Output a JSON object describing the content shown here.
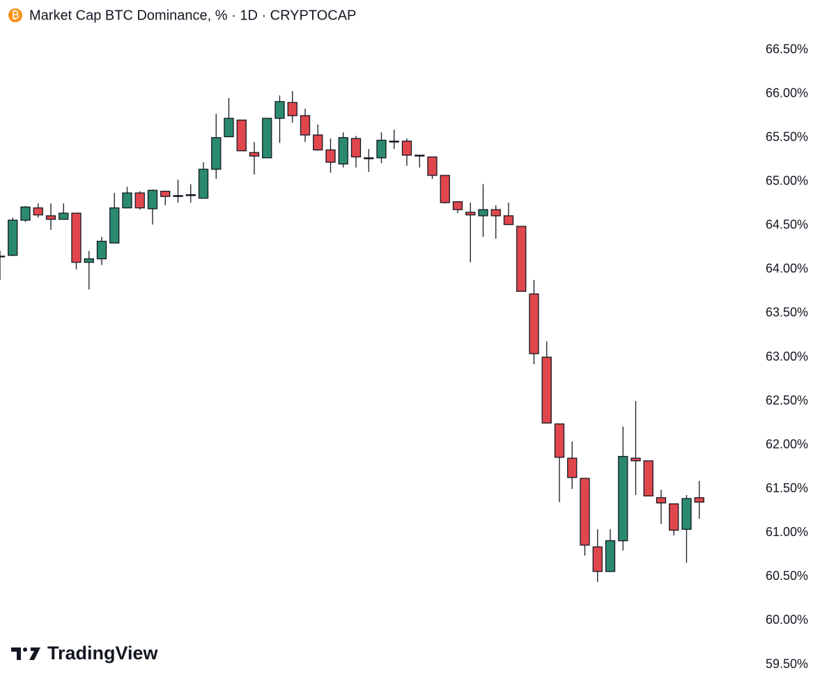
{
  "chart_data": {
    "type": "candlestick",
    "title": "Market Cap BTC Dominance, % · 1D · CRYPTOCAP",
    "watermark": "TradingView",
    "up_color": "#2b8a6e",
    "down_color": "#e0474c",
    "outline_color": "#131722",
    "ylim": [
      59.29,
      66.75
    ],
    "yticks": [
      {
        "value": 66.5,
        "label": "66.50%"
      },
      {
        "value": 66,
        "label": "66.00%"
      },
      {
        "value": 65.5,
        "label": "65.50%"
      },
      {
        "value": 65,
        "label": "65.00%"
      },
      {
        "value": 64.5,
        "label": "64.50%"
      },
      {
        "value": 64,
        "label": "64.00%"
      },
      {
        "value": 63.5,
        "label": "63.50%"
      },
      {
        "value": 63,
        "label": "63.00%"
      },
      {
        "value": 62.5,
        "label": "62.50%"
      },
      {
        "value": 62,
        "label": "62.00%"
      },
      {
        "value": 61.5,
        "label": "61.50%"
      },
      {
        "value": 61,
        "label": "61.00%"
      },
      {
        "value": 60.5,
        "label": "60.50%"
      },
      {
        "value": 60,
        "label": "60.00%"
      },
      {
        "value": 59.5,
        "label": "59.50%"
      }
    ],
    "grid": false,
    "open": [
      64.15,
      64.16,
      64.56,
      64.7,
      64.61,
      64.57,
      64.64,
      64.08,
      64.12,
      64.3,
      64.7,
      64.87,
      64.69,
      64.89,
      64.83,
      64.85,
      64.81,
      65.14,
      65.51,
      65.7,
      65.33,
      65.27,
      65.72,
      65.9,
      65.75,
      65.53,
      65.36,
      65.2,
      65.49,
      65.27,
      65.27,
      65.45,
      65.46,
      65.3,
      65.28,
      65.07,
      64.77,
      64.65,
      64.61,
      64.68,
      64.61,
      64.49,
      63.72,
      63.0,
      62.24,
      61.85,
      61.62,
      60.84,
      60.56,
      60.91,
      61.85,
      61.82,
      61.4,
      61.33,
      61.04,
      61.4
    ],
    "high": [
      64.21,
      64.59,
      64.72,
      64.75,
      64.75,
      64.75,
      64.64,
      64.21,
      64.37,
      64.87,
      64.94,
      64.89,
      64.91,
      64.89,
      65.02,
      64.97,
      65.22,
      65.77,
      65.95,
      65.7,
      65.45,
      65.72,
      65.98,
      66.03,
      65.83,
      65.65,
      65.49,
      65.56,
      65.52,
      65.37,
      65.56,
      65.59,
      65.49,
      65.3,
      65.28,
      65.07,
      64.77,
      64.76,
      64.97,
      64.73,
      64.76,
      64.49,
      63.88,
      63.18,
      62.24,
      62.04,
      61.62,
      61.04,
      61.04,
      62.21,
      62.5,
      61.82,
      61.49,
      61.33,
      61.43,
      61.59
    ],
    "low": [
      63.88,
      64.15,
      64.54,
      64.59,
      64.45,
      64.57,
      64.0,
      63.77,
      64.05,
      64.3,
      64.7,
      64.68,
      64.51,
      64.73,
      64.76,
      64.76,
      64.81,
      65.03,
      65.51,
      65.35,
      65.08,
      65.27,
      65.44,
      65.67,
      65.45,
      65.35,
      65.1,
      65.16,
      65.16,
      65.11,
      65.21,
      65.37,
      65.18,
      65.16,
      65.03,
      64.75,
      64.64,
      64.08,
      64.37,
      64.35,
      64.51,
      63.75,
      62.92,
      62.25,
      61.35,
      61.5,
      60.74,
      60.44,
      60.56,
      60.8,
      61.43,
      61.42,
      61.1,
      60.97,
      60.66,
      61.16
    ],
    "close": [
      64.15,
      64.56,
      64.71,
      64.62,
      64.57,
      64.64,
      64.08,
      64.12,
      64.32,
      64.7,
      64.87,
      64.7,
      64.9,
      64.83,
      64.84,
      64.84,
      65.14,
      65.5,
      65.72,
      65.35,
      65.29,
      65.72,
      65.91,
      65.75,
      65.53,
      65.36,
      65.22,
      65.5,
      65.28,
      65.26,
      65.47,
      65.46,
      65.3,
      65.29,
      65.07,
      64.76,
      64.68,
      64.62,
      64.68,
      64.61,
      64.51,
      63.75,
      63.04,
      62.25,
      61.86,
      61.63,
      60.86,
      60.56,
      60.91,
      61.87,
      61.82,
      61.42,
      61.34,
      61.03,
      61.39,
      61.35
    ]
  }
}
